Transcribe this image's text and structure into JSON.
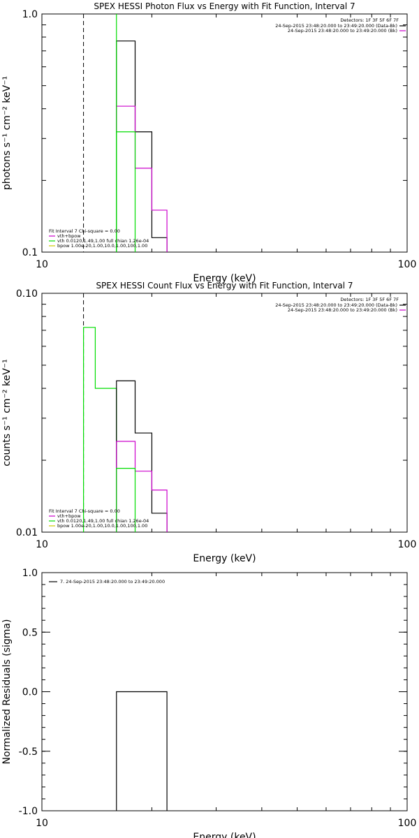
{
  "colors": {
    "background": "#ffffff",
    "axis": "#000000",
    "data": "#000000",
    "model_total": "#cc00cc",
    "vth": "#00dd00",
    "bpow": "#cccc00",
    "fit_low": "#000000"
  },
  "chart_data": [
    {
      "type": "line",
      "title": "SPEX HESSI Photon Flux vs Energy with Fit Function, Interval 7",
      "xlabel": "Energy (keV)",
      "ylabel": "photons s⁻¹ cm⁻² keV⁻¹",
      "xscale": "log",
      "yscale": "log",
      "xlim": [
        10,
        100
      ],
      "ylim": [
        0.1,
        1.0
      ],
      "x_tick_labels": [
        {
          "v": 10,
          "label": "10"
        },
        {
          "v": 100,
          "label": "100"
        }
      ],
      "y_tick_labels": [
        {
          "v": 0.1,
          "label": "0.1"
        },
        {
          "v": 1.0,
          "label": "1.0"
        }
      ],
      "fit_low_energy": 13.0,
      "legend_top_right": {
        "detectors": "Detectors: 1F 3F 5F 6F 7F",
        "entries": [
          {
            "text": "24-Sep-2015 23:48:20.000 to 23:49:20.000 (Data-Bk)",
            "color": "#000000"
          },
          {
            "text": "24-Sep-2015 23:48:20.000 to 23:49:20.000 (Bk)",
            "color": "#cc00cc"
          }
        ]
      },
      "legend_bottom_left": {
        "header": "Fit Interval  7    Chi-square = 0.00",
        "entries": [
          {
            "text": "vth+bpow",
            "color": "#cc00cc"
          },
          {
            "text": "vth 0.0120,1.49,1.00  full chian 1.26e-04",
            "color": "#00dd00"
          },
          {
            "text": "bpow 1.00e-20,1.00,10.0,1.00,100,1.00",
            "color": "#cccc00"
          }
        ]
      },
      "series": [
        {
          "role": "data",
          "color": "#000000",
          "x": [
            16,
            18,
            20,
            22
          ],
          "values": [
            0.77,
            0.32,
            0.115,
            0.1
          ]
        },
        {
          "role": "model_total",
          "color": "#cc00cc",
          "x": [
            16,
            18,
            20,
            22
          ],
          "values": [
            0.41,
            0.225,
            0.15,
            0.1
          ]
        },
        {
          "role": "vth",
          "color": "#00dd00",
          "x": [
            16,
            18
          ],
          "values": [
            0.32,
            0.1
          ]
        }
      ],
      "vth_vertical_at": 16.0
    },
    {
      "type": "line",
      "title": "SPEX HESSI Count Flux vs Energy with Fit Function, Interval 7",
      "xlabel": "Energy (keV)",
      "ylabel": "counts s⁻¹ cm⁻² keV⁻¹",
      "xscale": "log",
      "yscale": "log",
      "xlim": [
        10,
        100
      ],
      "ylim": [
        0.01,
        0.1
      ],
      "x_tick_labels": [
        {
          "v": 10,
          "label": "10"
        },
        {
          "v": 100,
          "label": "100"
        }
      ],
      "y_tick_labels": [
        {
          "v": 0.01,
          "label": "0.01"
        },
        {
          "v": 0.1,
          "label": "0.10"
        }
      ],
      "fit_low_energy": 13.0,
      "legend_top_right": {
        "detectors": "Detectors: 1F 3F 5F 6F 7F",
        "entries": [
          {
            "text": "24-Sep-2015 23:48:20.000 to 23:49:20.000 (Data-Bk)",
            "color": "#000000"
          },
          {
            "text": "24-Sep-2015 23:48:20.000 to 23:49:20.000 (Bk)",
            "color": "#cc00cc"
          }
        ]
      },
      "legend_bottom_left": {
        "header": "Fit Interval  7    Chi-square = 0.00",
        "entries": [
          {
            "text": "vth+bpow",
            "color": "#cc00cc"
          },
          {
            "text": "vth 0.0120,1.49,1.00  full chian 1.26e-04",
            "color": "#00dd00"
          },
          {
            "text": "bpow 1.00e-20,1.00,10.0,1.00,100,1.00",
            "color": "#cccc00"
          }
        ]
      },
      "series": [
        {
          "role": "vth_low",
          "color": "#00dd00",
          "x": [
            13,
            14,
            16
          ],
          "values": [
            0.072,
            0.04,
            0.0
          ]
        },
        {
          "role": "data",
          "color": "#000000",
          "x": [
            16,
            18,
            20,
            22
          ],
          "values": [
            0.043,
            0.026,
            0.012,
            0.01
          ]
        },
        {
          "role": "model_total",
          "color": "#cc00cc",
          "x": [
            16,
            18,
            20,
            22
          ],
          "values": [
            0.024,
            0.018,
            0.015,
            0.01
          ]
        },
        {
          "role": "vth",
          "color": "#00dd00",
          "x": [
            16,
            18
          ],
          "values": [
            0.0185,
            0.01
          ]
        }
      ]
    },
    {
      "type": "line",
      "title": "",
      "xlabel": "Energy (keV)",
      "ylabel": "Normalized Residuals (sigma)",
      "xscale": "log",
      "yscale": "linear",
      "xlim": [
        10,
        100
      ],
      "ylim": [
        -1.0,
        1.0
      ],
      "x_tick_labels": [
        {
          "v": 10,
          "label": "10"
        },
        {
          "v": 100,
          "label": "100"
        }
      ],
      "y_tick_labels": [
        {
          "v": 1.0,
          "label": "1.0"
        },
        {
          "v": 0.5,
          "label": "0.5"
        },
        {
          "v": 0.0,
          "label": "0.0"
        },
        {
          "v": -0.5,
          "label": "-0.5"
        },
        {
          "v": -1.0,
          "label": "-1.0"
        }
      ],
      "legend_top_left": {
        "text": "7. 24-Sep-2015 23:48:20.000 to 23:49:20.000",
        "color": "#000000"
      },
      "series": [
        {
          "role": "residuals",
          "color": "#000000",
          "x": [
            16,
            22
          ],
          "values": [
            0.0,
            0.0
          ]
        }
      ]
    }
  ]
}
